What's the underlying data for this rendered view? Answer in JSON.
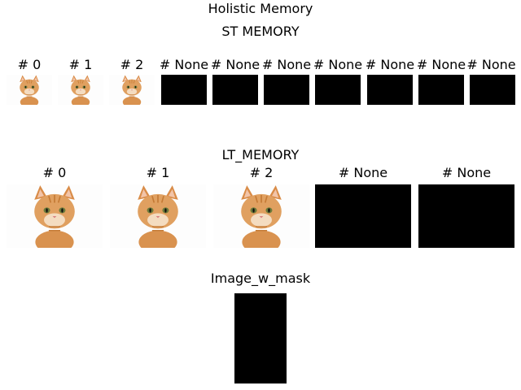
{
  "figure": {
    "main_title": "Holistic Memory",
    "st_title": "ST MEMORY",
    "lt_title": "LT_MEMORY",
    "mask_title": "Image_w_mask"
  },
  "st_memory": {
    "slots": [
      {
        "label": "# 0",
        "content": "cat-image"
      },
      {
        "label": "# 1",
        "content": "cat-image"
      },
      {
        "label": "# 2",
        "content": "cat-image"
      },
      {
        "label": "# None",
        "content": "empty"
      },
      {
        "label": "# None",
        "content": "empty"
      },
      {
        "label": "# None",
        "content": "empty"
      },
      {
        "label": "# None",
        "content": "empty"
      },
      {
        "label": "# None",
        "content": "empty"
      },
      {
        "label": "# None",
        "content": "empty"
      },
      {
        "label": "# None",
        "content": "empty"
      }
    ]
  },
  "lt_memory": {
    "slots": [
      {
        "label": "# 0",
        "content": "cat-image"
      },
      {
        "label": "# 1",
        "content": "cat-image"
      },
      {
        "label": "# 2",
        "content": "cat-image"
      },
      {
        "label": "# None",
        "content": "empty"
      },
      {
        "label": "# None",
        "content": "empty"
      }
    ]
  },
  "image_w_mask": {
    "content": "mask-image"
  },
  "colors": {
    "background": "#ffffff",
    "empty_slot": "#000000",
    "cat_fur": "#e0a060",
    "cat_stripe": "#c47a35"
  }
}
